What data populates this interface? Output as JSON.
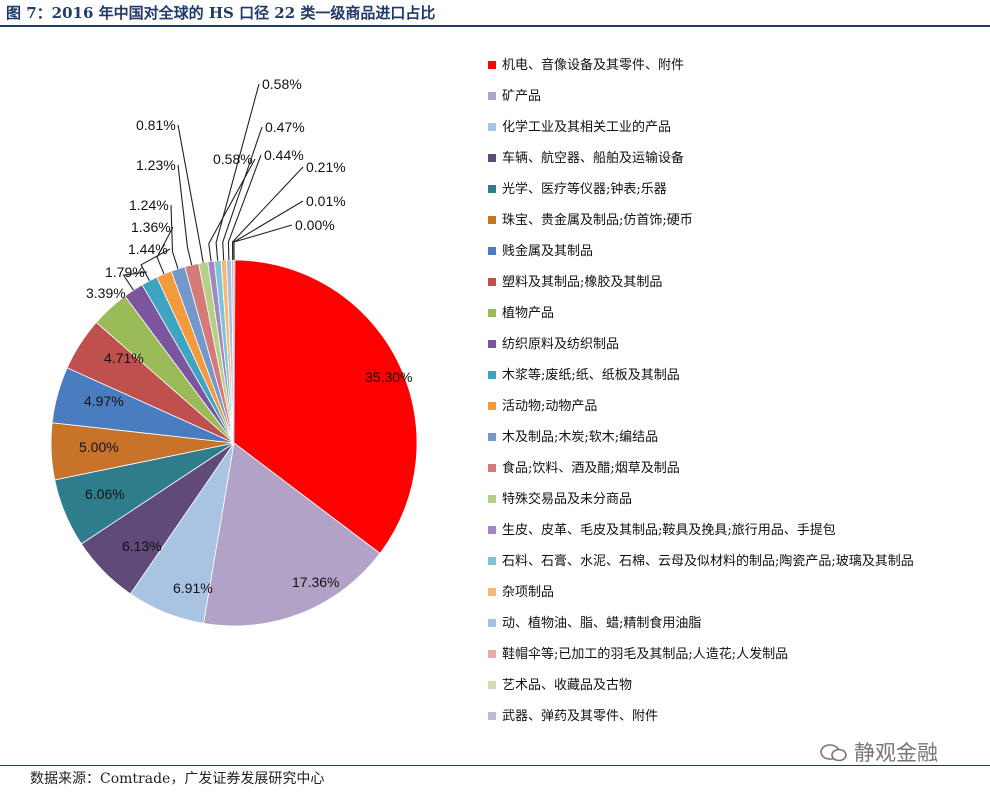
{
  "title": "图 7：2016 年中国对全球的 HS 口径 22 类一级商品进口占比",
  "source": "数据来源：Comtrade，广发证券发展研究中心",
  "watermark": "静观金融",
  "chart_data": {
    "type": "pie",
    "title": "",
    "legend_position": "right",
    "unit": "%",
    "slices": [
      {
        "name": "机电、音像设备及其零件、附件",
        "value": 35.3,
        "label": "35.30%",
        "color": "#ff0000"
      },
      {
        "name": "矿产品",
        "value": 17.36,
        "label": "17.36%",
        "color": "#b3a2c7"
      },
      {
        "name": "化学工业及其相关工业的产品",
        "value": 6.91,
        "label": "6.91%",
        "color": "#a9c4e2"
      },
      {
        "name": "车辆、航空器、船舶及运输设备",
        "value": 6.13,
        "label": "6.13%",
        "color": "#5f4a7a"
      },
      {
        "name": "光学、医疗等仪器;钟表;乐器",
        "value": 6.06,
        "label": "6.06%",
        "color": "#2e7d8c"
      },
      {
        "name": "珠宝、贵金属及制品;仿首饰;硬币",
        "value": 5.0,
        "label": "5.00%",
        "color": "#c8732a"
      },
      {
        "name": "贱金属及其制品",
        "value": 4.97,
        "label": "4.97%",
        "color": "#4a7cc0"
      },
      {
        "name": "塑料及其制品;橡胶及其制品",
        "value": 4.71,
        "label": "4.71%",
        "color": "#c0504d"
      },
      {
        "name": "植物产品",
        "value": 3.39,
        "label": "3.39%",
        "color": "#9bbb59"
      },
      {
        "name": "纺织原料及纺织制品",
        "value": 1.79,
        "label": "1.79%",
        "color": "#7b559e"
      },
      {
        "name": "木浆等;废纸;纸、纸板及其制品",
        "value": 1.44,
        "label": "1.44%",
        "color": "#3ea4c4"
      },
      {
        "name": "活动物;动物产品",
        "value": 1.36,
        "label": "1.36%",
        "color": "#f39a3d"
      },
      {
        "name": "木及制品;木炭;软木;编结品",
        "value": 1.24,
        "label": "1.24%",
        "color": "#7399cc"
      },
      {
        "name": "食品;饮料、酒及醋;烟草及制品",
        "value": 1.23,
        "label": "1.23%",
        "color": "#d47a79"
      },
      {
        "name": "特殊交易品及未分商品",
        "value": 0.81,
        "label": "0.81%",
        "color": "#b5cf83"
      },
      {
        "name": "生皮、皮革、毛皮及其制品;鞍具及挽具;旅行用品、手提包",
        "value": 0.58,
        "label": "0.58%",
        "color": "#a188c2"
      },
      {
        "name": "石料、石膏、水泥、石棉、云母及似材料的制品;陶瓷产品;玻璃及其制品",
        "value": 0.58,
        "label": "0.58%",
        "color": "#7dc3d9"
      },
      {
        "name": "杂项制品",
        "value": 0.47,
        "label": "0.47%",
        "color": "#f8b875"
      },
      {
        "name": "动、植物油、脂、蜡;精制食用油脂",
        "value": 0.44,
        "label": "0.44%",
        "color": "#a9bfdf"
      },
      {
        "name": "鞋帽伞等;已加工的羽毛及其制品;人造花;人发制品",
        "value": 0.21,
        "label": "0.21%",
        "color": "#e3aeac"
      },
      {
        "name": "艺术品、收藏品及古物",
        "value": 0.01,
        "label": "0.01%",
        "color": "#cfdfb4"
      },
      {
        "name": "武器、弹药及其零件、附件",
        "value": 0.0,
        "label": "0.00%",
        "color": "#c3b6d6"
      }
    ]
  }
}
